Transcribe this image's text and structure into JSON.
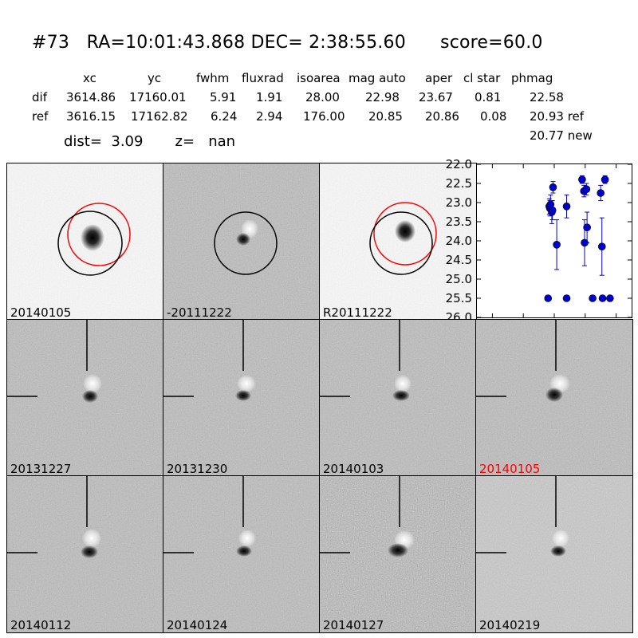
{
  "title": "#73   RA=10:01:43.868 DEC= 2:38:55.60      score=60.0",
  "table": {
    "headers": [
      "xc",
      "yc",
      "fwhm",
      "fluxrad",
      "isoarea",
      "mag auto",
      "aper",
      "cl star",
      "phmag"
    ],
    "rows": [
      {
        "name": "dif",
        "values": [
          "3614.86",
          "17160.01",
          "5.91",
          "1.91",
          "28.00",
          "22.98",
          "23.67",
          "0.81",
          "22.58"
        ]
      },
      {
        "name": "ref",
        "values": [
          "3616.15",
          "17162.82",
          "6.24",
          "2.94",
          "176.00",
          "20.85",
          "20.86",
          "0.08",
          "20.93 ref"
        ]
      }
    ],
    "extra": "20.77 new"
  },
  "dist_line": "dist=  3.09       z=   nan",
  "stamps": {
    "top": [
      "20140105",
      "-20111222",
      "R20111222"
    ],
    "row2": [
      "20131227",
      "20131230",
      "20140103",
      "20140105"
    ],
    "row3": [
      "20140112",
      "20140124",
      "20140127",
      "20140219"
    ],
    "highlight_color": "#ff0000"
  },
  "chart_data": {
    "type": "scatter",
    "x_range": [
      -125,
      125
    ],
    "y_range": [
      26.0,
      22.0
    ],
    "y_inverted": true,
    "x_ticks": [
      "−100",
      "−50",
      "0",
      "50",
      "100"
    ],
    "x_tick_values": [
      -100,
      -50,
      0,
      50,
      100
    ],
    "y_ticks": [
      "22.0",
      "22.5",
      "23.0",
      "23.5",
      "24.0",
      "24.5",
      "25.0",
      "25.5",
      "26.0"
    ],
    "y_tick_values": [
      22.0,
      22.5,
      23.0,
      23.5,
      24.0,
      24.5,
      25.0,
      25.5,
      26.0
    ],
    "marker_color": "#0000cc",
    "points": [
      {
        "x": -10,
        "y": 25.5,
        "err": 0.05
      },
      {
        "x": -8,
        "y": 23.1,
        "err": 0.2
      },
      {
        "x": -7,
        "y": 23.15,
        "err": 0.2
      },
      {
        "x": -6,
        "y": 23.05,
        "err": 0.25
      },
      {
        "x": -4,
        "y": 23.25,
        "err": 0.3
      },
      {
        "x": -3,
        "y": 23.2,
        "err": 0.25
      },
      {
        "x": -2,
        "y": 22.6,
        "err": 0.15
      },
      {
        "x": 4,
        "y": 24.1,
        "err": 0.65
      },
      {
        "x": 20,
        "y": 23.1,
        "err": 0.3
      },
      {
        "x": 20,
        "y": 25.5,
        "err": 0.05
      },
      {
        "x": 45,
        "y": 22.4,
        "err": 0.1
      },
      {
        "x": 48,
        "y": 22.7,
        "err": 0.15
      },
      {
        "x": 49,
        "y": 24.05,
        "err": 0.6
      },
      {
        "x": 52,
        "y": 22.65,
        "err": 0.15
      },
      {
        "x": 53,
        "y": 23.65,
        "err": 0.4
      },
      {
        "x": 62,
        "y": 25.5,
        "err": 0.05
      },
      {
        "x": 75,
        "y": 22.75,
        "err": 0.2
      },
      {
        "x": 77,
        "y": 24.15,
        "err": 0.75
      },
      {
        "x": 78,
        "y": 25.5,
        "err": 0.05
      },
      {
        "x": 82,
        "y": 22.4,
        "err": 0.1
      },
      {
        "x": 90,
        "y": 25.5,
        "err": 0.05
      }
    ]
  }
}
